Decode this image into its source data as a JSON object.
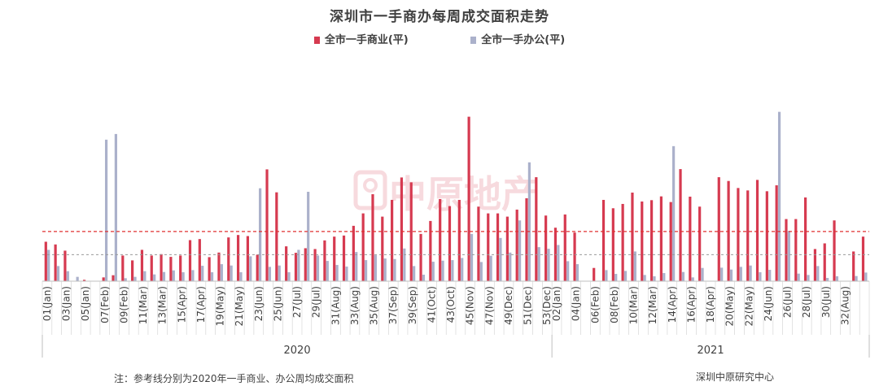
{
  "chart_data": {
    "type": "bar",
    "title": "深圳市一手商办每周成交面积走势",
    "series": [
      {
        "name": "全市一手商业(平)",
        "color": "#d63a50",
        "values": [
          14600,
          13600,
          11300,
          0,
          500,
          0,
          1400,
          2200,
          9500,
          7700,
          11600,
          9500,
          10000,
          9000,
          9500,
          15200,
          15600,
          8900,
          10600,
          16200,
          17100,
          16700,
          9800,
          41400,
          32900,
          12900,
          10500,
          12200,
          11900,
          15100,
          16500,
          16900,
          20500,
          25100,
          32200,
          23900,
          30100,
          38400,
          36600,
          17500,
          22300,
          30400,
          27800,
          30100,
          60900,
          27600,
          25100,
          25100,
          23900,
          26500,
          30700,
          38500,
          24300,
          19800,
          24700,
          18000,
          0,
          4900,
          30100,
          27000,
          28600,
          32800,
          29500,
          30000,
          31400,
          29300,
          41500,
          31300,
          27600,
          0,
          38500,
          37100,
          34500,
          33600,
          37500,
          33300,
          35500,
          23000,
          23000,
          31000,
          11900,
          14000,
          22500,
          0,
          11000,
          16500
        ]
      },
      {
        "name": "全市一手办公(平)",
        "color": "#abb1cb",
        "values": [
          11600,
          5600,
          3700,
          1600,
          0,
          0,
          52400,
          54500,
          1100,
          1600,
          3700,
          2500,
          3400,
          4000,
          3300,
          4100,
          5700,
          3300,
          6300,
          5800,
          3300,
          9200,
          34400,
          5300,
          5800,
          3300,
          11600,
          33100,
          9500,
          7500,
          6000,
          5400,
          10800,
          7800,
          9600,
          8400,
          8200,
          12100,
          5600,
          2400,
          7200,
          7600,
          7800,
          8600,
          17500,
          7100,
          9400,
          16000,
          10600,
          22500,
          44000,
          12600,
          12000,
          13400,
          7400,
          6300,
          0,
          0,
          4100,
          2700,
          3800,
          11000,
          2300,
          1800,
          3000,
          50000,
          3400,
          1400,
          4900,
          0,
          5000,
          4300,
          5300,
          5800,
          3300,
          4200,
          62700,
          18600,
          2800,
          2300,
          5600,
          1200,
          1800,
          0,
          1900,
          3200
        ]
      }
    ],
    "reference_lines": [
      {
        "series": "全市一手商业(平)",
        "value": 18400,
        "style": "dashed",
        "color": "#e03030"
      },
      {
        "series": "全市一手办公(平)",
        "value": 9800,
        "style": "dashed",
        "color": "#999999"
      }
    ],
    "years": [
      {
        "label": "2020",
        "weeks": 53
      },
      {
        "label": "2021",
        "weeks": 33
      }
    ],
    "week_labels_2020": [
      "01(Jan)",
      "03(Jan)",
      "05(Jan)",
      "07(Feb)",
      "09(Feb)",
      "11(Mar)",
      "13(Mar)",
      "15(Apr)",
      "17(Apr)",
      "19(May)",
      "21(May)",
      "23(Jun)",
      "25(Jun)",
      "27(Jul)",
      "29(Jul)",
      "31(Aug)",
      "33(Aug)",
      "35(Aug)",
      "37(Sep)",
      "39(Sep)",
      "41(Oct)",
      "43(Oct)",
      "45(Nov)",
      "47(Nov)",
      "49(Dec)",
      "51(Dec)",
      "53(Dec)"
    ],
    "week_labels_2021": [
      "02(Jan)",
      "04(Jan)",
      "06(Feb)",
      "08(Feb)",
      "10(Mar)",
      "12(Mar)",
      "14(Apr)",
      "16(Apr)",
      "18(Apr)",
      "20(May)",
      "22(May)",
      "24(Jun)",
      "26(Jul)",
      "28(Jul)",
      "30(Jul)",
      "32(Aug)"
    ],
    "ylim": [
      0,
      65000
    ],
    "legend_position": "top-center",
    "grid": false
  },
  "watermark": "中原地产",
  "footnote": "注：参考线分别为2020年一手商业、办公周均成交面积",
  "source": "深圳中原研究中心"
}
